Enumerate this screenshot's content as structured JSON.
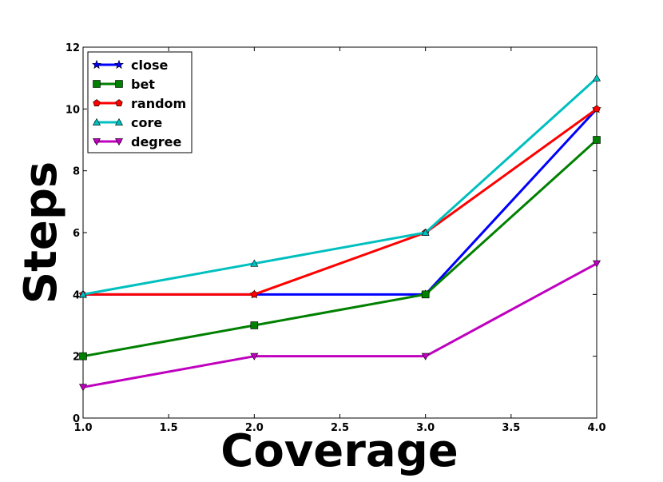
{
  "chart_data": {
    "type": "line",
    "title": "",
    "xlabel": "Coverage",
    "ylabel": "Steps",
    "xlim": [
      1.0,
      4.0
    ],
    "ylim": [
      0,
      12
    ],
    "x_ticks": [
      1.0,
      1.5,
      2.0,
      2.5,
      3.0,
      3.5,
      4.0
    ],
    "x_tick_labels": [
      "1.0",
      "1.5",
      "2.0",
      "2.5",
      "3.0",
      "3.5",
      "4.0"
    ],
    "y_ticks": [
      0,
      2,
      4,
      6,
      8,
      10,
      12
    ],
    "y_tick_labels": [
      "0",
      "2",
      "4",
      "6",
      "8",
      "10",
      "12"
    ],
    "grid": false,
    "legend_position": "top-left",
    "x": [
      1.0,
      2.0,
      3.0,
      4.0
    ],
    "series": [
      {
        "name": "close",
        "values": [
          4,
          4,
          4,
          10
        ],
        "color": "#0000ff",
        "marker": "star"
      },
      {
        "name": "bet",
        "values": [
          2,
          3,
          4,
          9
        ],
        "color": "#008000",
        "marker": "square"
      },
      {
        "name": "random",
        "values": [
          4,
          4,
          6,
          10
        ],
        "color": "#ff0000",
        "marker": "pentagon"
      },
      {
        "name": "core",
        "values": [
          4,
          5,
          6,
          11
        ],
        "color": "#00bfbf",
        "marker": "triangle-up"
      },
      {
        "name": "degree",
        "values": [
          1,
          2,
          2,
          5
        ],
        "color": "#bf00bf",
        "marker": "triangle-down"
      }
    ]
  }
}
